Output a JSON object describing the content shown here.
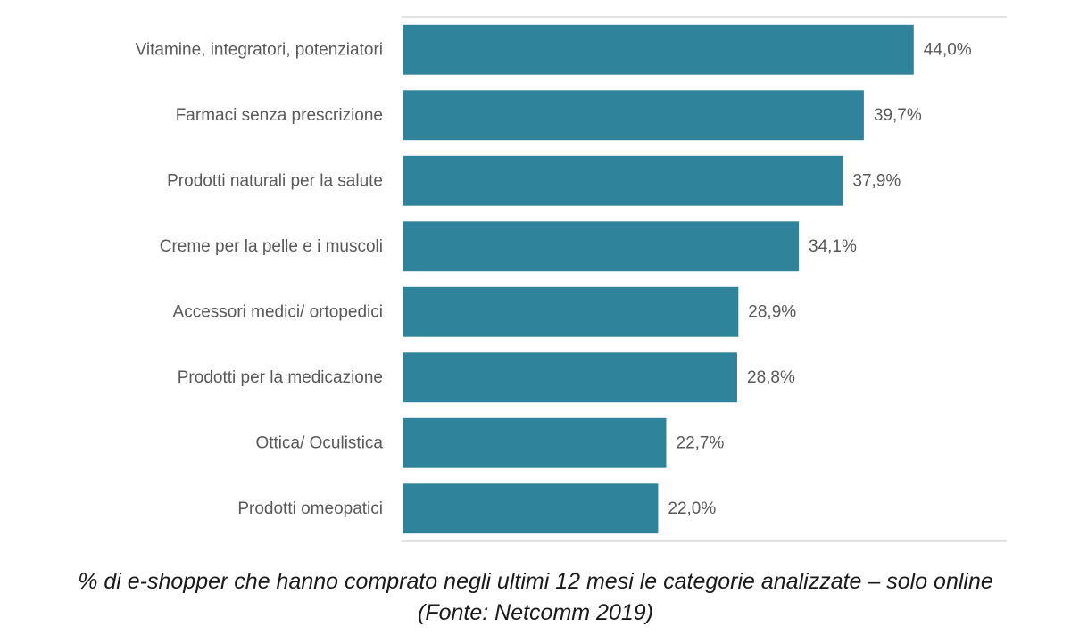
{
  "chart_data": {
    "type": "bar",
    "orientation": "horizontal",
    "categories": [
      "Vitamine, integratori, potenziatori",
      "Farmaci senza prescrizione",
      "Prodotti naturali per la salute",
      "Creme per la pelle e i muscoli",
      "Accessori medici/ ortopedici",
      "Prodotti per la medicazione",
      "Ottica/ Oculistica",
      "Prodotti omeopatici"
    ],
    "values": [
      44.0,
      39.7,
      37.9,
      34.1,
      28.9,
      28.8,
      22.7,
      22.0
    ],
    "value_labels": [
      "44,0%",
      "39,7%",
      "37,9%",
      "34,1%",
      "28,9%",
      "28,8%",
      "22,7%",
      "22,0%"
    ],
    "xlim": [
      0,
      52
    ],
    "bar_color": "#2f849b",
    "grid": false,
    "legend": "none"
  },
  "caption": {
    "line1": "% di e-shopper che hanno comprato negli ultimi 12 mesi le categorie analizzate – solo online",
    "line2": "(Fonte: Netcomm 2019)"
  }
}
